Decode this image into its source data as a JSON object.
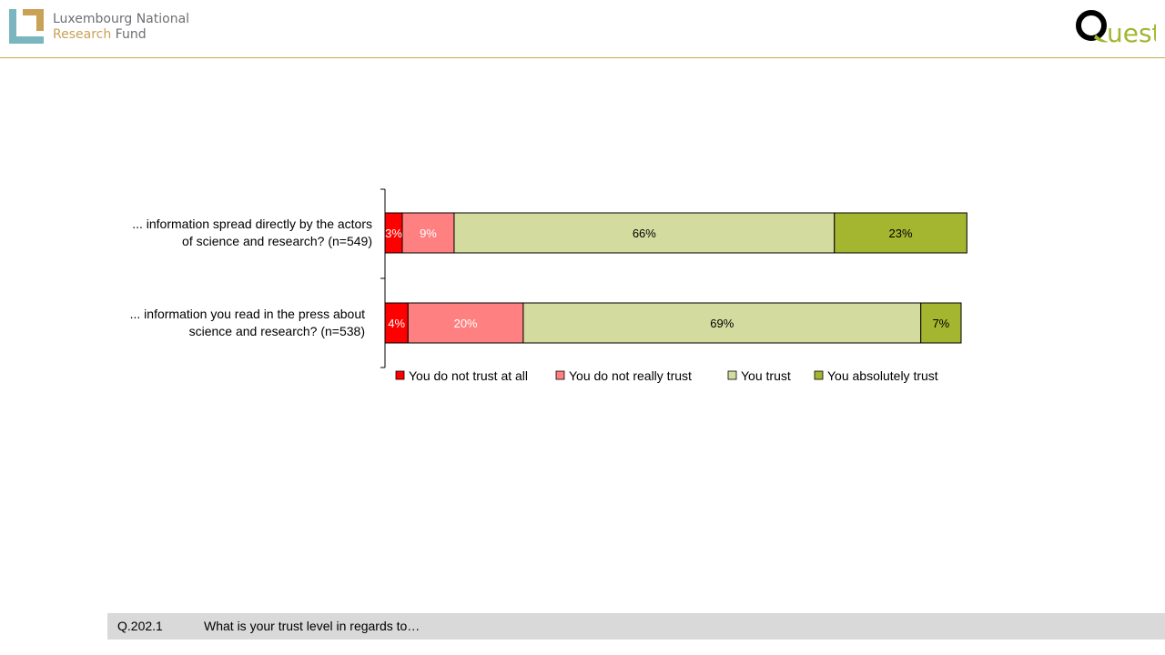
{
  "header": {
    "left_logo": {
      "name": "Luxembourg National Research Fund",
      "line1": "Luxembourg National",
      "line2_word1": "Research",
      "line2_word2": "Fund"
    },
    "right_logo": {
      "name": "Quest"
    }
  },
  "chart_data": {
    "type": "bar",
    "orientation": "horizontal",
    "stacked": true,
    "categories": [
      [
        "... information spread directly by the actors",
        "of science and research? (n=549)"
      ],
      [
        "... information you read in the press about",
        "science and research? (n=538)"
      ]
    ],
    "series": [
      {
        "name": "You do not trust at all",
        "color": "#ff0000",
        "label_color": "#ffffff",
        "values": [
          3,
          4
        ]
      },
      {
        "name": "You do not really trust",
        "color": "#ff8080",
        "label_color": "#ffffff",
        "values": [
          9,
          20
        ]
      },
      {
        "name": "You trust",
        "color": "#d3dc9e",
        "label_color": "#000000",
        "values": [
          66,
          69
        ]
      },
      {
        "name": "You absolutely trust",
        "color": "#a4b52f",
        "label_color": "#000000",
        "values": [
          23,
          7
        ]
      }
    ],
    "value_suffix": "%",
    "xlim": [
      0,
      100
    ],
    "grid": false,
    "legend_position": "bottom"
  },
  "footer": {
    "question_code": "Q.202.1",
    "question_text": "What is your trust level in regards to…"
  }
}
